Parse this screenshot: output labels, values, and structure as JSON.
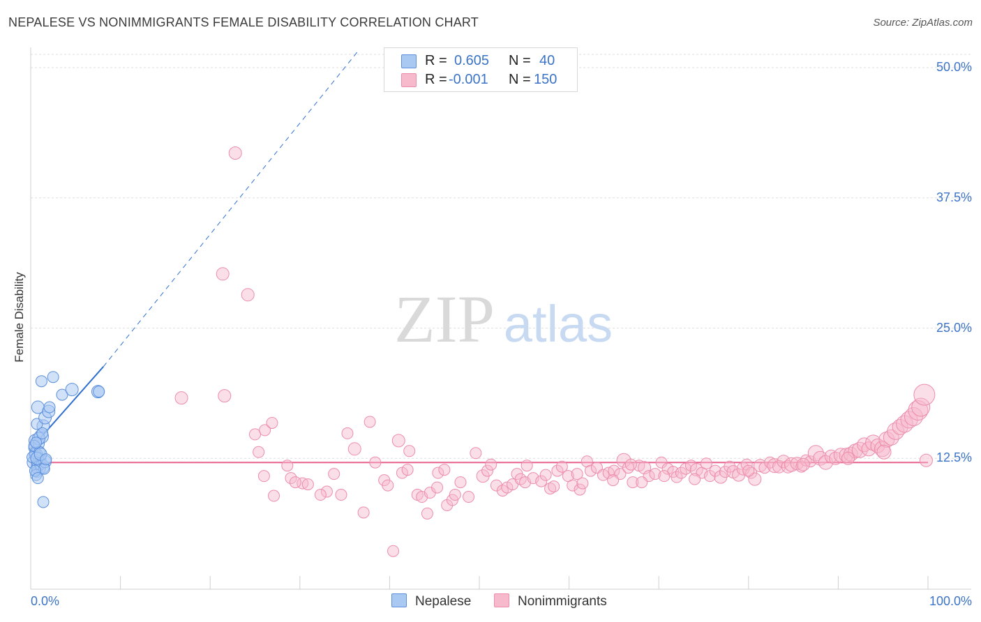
{
  "chart_data": {
    "type": "scatter",
    "title": "NEPALESE VS NONIMMIGRANTS FEMALE DISABILITY CORRELATION CHART",
    "source": "Source: ZipAtlas.com",
    "xlabel": "",
    "ylabel": "Female Disability",
    "xlim": [
      0,
      100
    ],
    "ylim": [
      0,
      52
    ],
    "x_tick_labels": [
      "0.0%",
      "100.0%"
    ],
    "y_ticks": [
      {
        "value": 50,
        "label": "50.0%"
      },
      {
        "value": 37.5,
        "label": "37.5%"
      },
      {
        "value": 25,
        "label": "25.0%"
      },
      {
        "value": 12.5,
        "label": "12.5%"
      }
    ],
    "grid": true,
    "watermark": {
      "zip": "ZIP",
      "atlas": "atlas"
    },
    "legend": {
      "r_label": "R =",
      "n_label": "N =",
      "entries": [
        {
          "name": "Nepalese",
          "r": "0.605",
          "n": "40"
        },
        {
          "name": "Nonimmigrants",
          "r": "-0.001",
          "n": "150"
        }
      ]
    },
    "colors": {
      "nepalese_fill": "#a9c8f2",
      "nepalese_stroke": "#5b8fdc",
      "nepalese_line": "#2d6fd1",
      "nonimmigrants_fill": "#f7b9cc",
      "nonimmigrants_stroke": "#ec8cab",
      "nonimmigrants_line": "#e8608c",
      "axis_text": "#3b73c7"
    },
    "series": [
      {
        "name": "Nepalese",
        "trend": {
          "x0": 0,
          "y0": 13.4,
          "x1": 8.1,
          "y1": 21.3,
          "extend_to_x": 36.4,
          "extend_to_y": 51.5
        },
        "points": [
          [
            0.4,
            13.5,
            8
          ],
          [
            0.5,
            14.2,
            9
          ],
          [
            0.6,
            12.8,
            10
          ],
          [
            0.3,
            12.1,
            9
          ],
          [
            0.8,
            11.9,
            9
          ],
          [
            0.7,
            11.2,
            8
          ],
          [
            1.0,
            12.4,
            9
          ],
          [
            0.9,
            13.9,
            8
          ],
          [
            1.2,
            14.6,
            10
          ],
          [
            1.4,
            15.6,
            9
          ],
          [
            0.7,
            15.8,
            8
          ],
          [
            1.6,
            16.4,
            9
          ],
          [
            0.8,
            17.4,
            9
          ],
          [
            2.0,
            17.0,
            9
          ],
          [
            2.1,
            17.4,
            8
          ],
          [
            1.2,
            19.9,
            8
          ],
          [
            2.5,
            20.3,
            8
          ],
          [
            3.5,
            18.6,
            8
          ],
          [
            4.6,
            19.1,
            9
          ],
          [
            7.5,
            18.9,
            9
          ],
          [
            7.6,
            18.9,
            8
          ],
          [
            0.9,
            11.6,
            10
          ],
          [
            1.1,
            12.0,
            9
          ],
          [
            1.3,
            11.7,
            10
          ],
          [
            0.6,
            10.9,
            8
          ],
          [
            1.4,
            8.3,
            8
          ],
          [
            0.5,
            13.0,
            8
          ],
          [
            0.9,
            14.4,
            9
          ],
          [
            1.6,
            12.2,
            9
          ],
          [
            0.2,
            12.6,
            8
          ],
          [
            0.4,
            13.7,
            8
          ],
          [
            1.0,
            13.1,
            8
          ],
          [
            1.3,
            14.9,
            8
          ],
          [
            0.7,
            12.5,
            9
          ],
          [
            1.5,
            11.5,
            8
          ],
          [
            0.6,
            14.0,
            8
          ],
          [
            1.1,
            12.9,
            9
          ],
          [
            0.5,
            11.3,
            8
          ],
          [
            1.7,
            12.4,
            8
          ],
          [
            0.8,
            10.6,
            8
          ]
        ]
      },
      {
        "name": "Nonimmigrants",
        "trend": {
          "x0": 0,
          "y0": 12.1,
          "x1": 100,
          "y1": 12.1
        },
        "points": [
          [
            22.8,
            41.8,
            9
          ],
          [
            21.4,
            30.2,
            9
          ],
          [
            24.2,
            28.2,
            9
          ],
          [
            16.8,
            18.3,
            9
          ],
          [
            21.6,
            18.5,
            9
          ],
          [
            25.0,
            14.8,
            8
          ],
          [
            26.1,
            15.2,
            8
          ],
          [
            26.9,
            15.9,
            8
          ],
          [
            25.4,
            13.1,
            8
          ],
          [
            27.1,
            8.9,
            8
          ],
          [
            26.0,
            10.8,
            8
          ],
          [
            28.6,
            11.8,
            8
          ],
          [
            29.0,
            10.6,
            8
          ],
          [
            30.3,
            10.1,
            8
          ],
          [
            30.9,
            10.0,
            8
          ],
          [
            29.5,
            10.2,
            8
          ],
          [
            33.0,
            9.3,
            8
          ],
          [
            32.3,
            9.0,
            8
          ],
          [
            34.6,
            9.0,
            8
          ],
          [
            33.8,
            11.0,
            8
          ],
          [
            35.3,
            14.9,
            8
          ],
          [
            36.1,
            13.4,
            9
          ],
          [
            37.1,
            7.3,
            8
          ],
          [
            37.8,
            16.0,
            8
          ],
          [
            38.4,
            12.1,
            8
          ],
          [
            39.4,
            10.4,
            8
          ],
          [
            39.8,
            9.9,
            8
          ],
          [
            40.4,
            3.6,
            8
          ],
          [
            41.0,
            14.2,
            9
          ],
          [
            42.2,
            13.2,
            8
          ],
          [
            41.4,
            11.1,
            8
          ],
          [
            42.0,
            11.4,
            8
          ],
          [
            43.1,
            9.0,
            8
          ],
          [
            43.6,
            8.8,
            8
          ],
          [
            44.5,
            9.2,
            8
          ],
          [
            44.2,
            7.2,
            8
          ],
          [
            45.3,
            9.7,
            8
          ],
          [
            45.4,
            11.1,
            8
          ],
          [
            46.1,
            11.4,
            8
          ],
          [
            46.4,
            8.0,
            8
          ],
          [
            47.0,
            8.5,
            8
          ],
          [
            47.3,
            9.0,
            8
          ],
          [
            47.9,
            10.2,
            8
          ],
          [
            48.8,
            8.8,
            8
          ],
          [
            49.6,
            13.0,
            8
          ],
          [
            50.4,
            10.8,
            9
          ],
          [
            50.9,
            11.3,
            8
          ],
          [
            51.3,
            11.9,
            8
          ],
          [
            51.9,
            9.9,
            8
          ],
          [
            52.6,
            9.4,
            8
          ],
          [
            53.1,
            9.7,
            8
          ],
          [
            53.7,
            10.0,
            8
          ],
          [
            54.2,
            11.0,
            8
          ],
          [
            54.6,
            10.5,
            8
          ],
          [
            55.3,
            11.8,
            8
          ],
          [
            55.1,
            10.2,
            8
          ],
          [
            56.0,
            10.6,
            8
          ],
          [
            56.9,
            10.3,
            8
          ],
          [
            57.4,
            10.9,
            8
          ],
          [
            57.9,
            9.6,
            8
          ],
          [
            58.3,
            9.8,
            8
          ],
          [
            58.7,
            11.3,
            8
          ],
          [
            59.2,
            11.7,
            8
          ],
          [
            59.9,
            10.8,
            8
          ],
          [
            60.4,
            9.9,
            8
          ],
          [
            61.2,
            9.5,
            8
          ],
          [
            61.5,
            10.1,
            8
          ],
          [
            62.0,
            12.2,
            8
          ],
          [
            62.4,
            11.3,
            8
          ],
          [
            63.1,
            11.6,
            8
          ],
          [
            63.8,
            10.9,
            8
          ],
          [
            64.4,
            11.1,
            8
          ],
          [
            65.0,
            11.3,
            8
          ],
          [
            65.7,
            11.0,
            8
          ],
          [
            66.1,
            12.3,
            10
          ],
          [
            66.6,
            11.6,
            8
          ],
          [
            67.1,
            10.2,
            8
          ],
          [
            67.8,
            11.8,
            8
          ],
          [
            68.4,
            11.6,
            9
          ],
          [
            68.9,
            10.8,
            8
          ],
          [
            69.6,
            11.0,
            8
          ],
          [
            70.3,
            12.1,
            8
          ],
          [
            71.0,
            11.5,
            8
          ],
          [
            71.6,
            11.2,
            8
          ],
          [
            72.0,
            10.7,
            8
          ],
          [
            72.5,
            11.1,
            8
          ],
          [
            73.0,
            11.5,
            8
          ],
          [
            73.6,
            11.8,
            8
          ],
          [
            74.2,
            11.4,
            9
          ],
          [
            74.8,
            11.1,
            8
          ],
          [
            75.3,
            12.0,
            8
          ],
          [
            75.7,
            10.8,
            8
          ],
          [
            76.3,
            11.3,
            8
          ],
          [
            76.9,
            10.7,
            9
          ],
          [
            77.4,
            11.2,
            8
          ],
          [
            77.9,
            11.7,
            8
          ],
          [
            78.3,
            11.2,
            9
          ],
          [
            78.9,
            10.9,
            9
          ],
          [
            79.4,
            11.5,
            9
          ],
          [
            79.8,
            11.9,
            8
          ],
          [
            80.3,
            11.1,
            8
          ],
          [
            80.7,
            10.5,
            9
          ],
          [
            81.3,
            11.8,
            9
          ],
          [
            81.8,
            11.6,
            8
          ],
          [
            82.4,
            12.1,
            8
          ],
          [
            82.9,
            11.8,
            10
          ],
          [
            83.4,
            11.7,
            9
          ],
          [
            83.9,
            12.2,
            9
          ],
          [
            84.4,
            11.7,
            9
          ],
          [
            84.8,
            11.9,
            10
          ],
          [
            85.4,
            12.0,
            9
          ],
          [
            85.9,
            11.7,
            8
          ],
          [
            86.4,
            12.3,
            8
          ],
          [
            86.9,
            12.2,
            8
          ],
          [
            87.5,
            13.0,
            11
          ],
          [
            88.0,
            12.5,
            10
          ],
          [
            88.6,
            12.1,
            10
          ],
          [
            89.2,
            12.7,
            9
          ],
          [
            89.7,
            12.5,
            9
          ],
          [
            90.3,
            12.8,
            10
          ],
          [
            90.9,
            12.8,
            10
          ],
          [
            91.4,
            12.9,
            10
          ],
          [
            91.9,
            13.2,
            10
          ],
          [
            92.4,
            13.3,
            11
          ],
          [
            92.9,
            13.8,
            10
          ],
          [
            93.4,
            13.4,
            10
          ],
          [
            93.9,
            14.0,
            11
          ],
          [
            94.4,
            13.7,
            10
          ],
          [
            94.9,
            13.4,
            11
          ],
          [
            95.4,
            14.3,
            11
          ],
          [
            95.9,
            14.5,
            11
          ],
          [
            96.4,
            15.1,
            12
          ],
          [
            96.9,
            15.5,
            11
          ],
          [
            97.4,
            15.8,
            12
          ],
          [
            97.9,
            16.2,
            12
          ],
          [
            98.4,
            16.5,
            13
          ],
          [
            98.9,
            17.1,
            14
          ],
          [
            99.2,
            17.4,
            13
          ],
          [
            99.6,
            18.6,
            15
          ],
          [
            99.8,
            12.3,
            9
          ],
          [
            70.6,
            10.8,
            8
          ],
          [
            66.9,
            11.9,
            8
          ],
          [
            60.9,
            11.0,
            8
          ],
          [
            64.9,
            10.4,
            8
          ],
          [
            68.1,
            10.2,
            8
          ],
          [
            74.0,
            10.5,
            8
          ],
          [
            80.0,
            11.3,
            8
          ],
          [
            86.1,
            11.9,
            9
          ],
          [
            91.1,
            12.5,
            9
          ],
          [
            95.1,
            13.1,
            10
          ]
        ]
      }
    ]
  }
}
